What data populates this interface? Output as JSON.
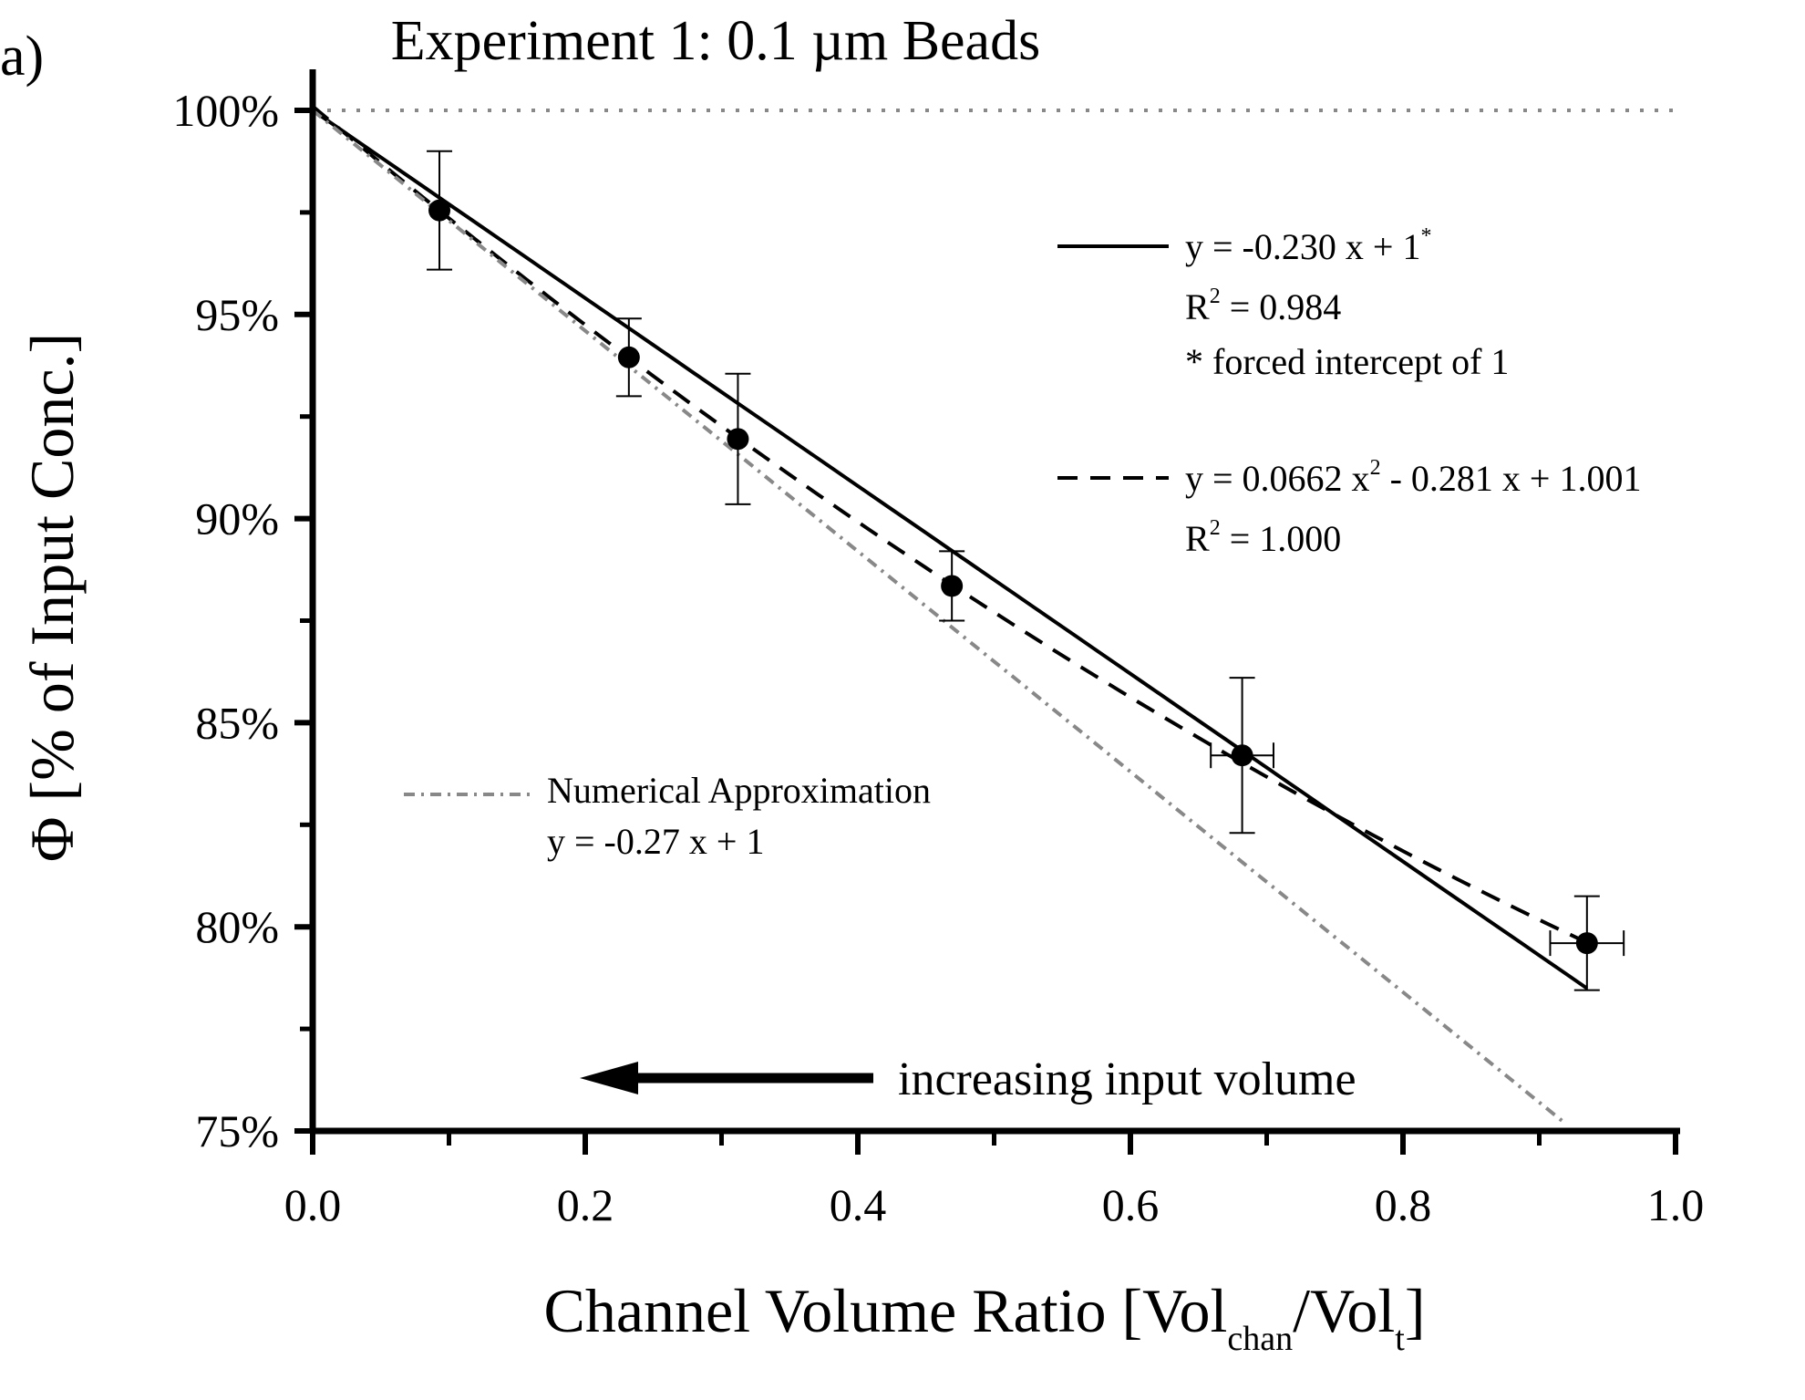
{
  "chart_data": {
    "type": "scatter",
    "panel_label": "a)",
    "title": "Experiment 1: 0.1 µm Beads",
    "xlabel": {
      "main": "Channel Volume Ratio [Vol",
      "sub1": "chan",
      "mid": "/Vol",
      "sub2": "t",
      "end": "]"
    },
    "ylabel": "Φ [% of Input Conc.]",
    "xlim": [
      0,
      1.0
    ],
    "ylim": [
      0.75,
      1.0
    ],
    "x_ticks": [
      0.0,
      0.2,
      0.4,
      0.6,
      0.8,
      1.0
    ],
    "x_tick_labels": [
      "0.0",
      "0.2",
      "0.4",
      "0.6",
      "0.8",
      "1.0"
    ],
    "y_ticks": [
      0.75,
      0.8,
      0.85,
      0.9,
      0.95,
      1.0
    ],
    "y_tick_labels": [
      "75%",
      "80%",
      "85%",
      "90%",
      "95%",
      "100%"
    ],
    "grid": false,
    "reference_line": {
      "y": 1.0,
      "style": "dotted",
      "color": "#888888"
    },
    "points": [
      {
        "x": 0.093,
        "y": 0.9755,
        "y_err": 0.0145,
        "x_err": 0.0
      },
      {
        "x": 0.232,
        "y": 0.9395,
        "y_err": 0.0095,
        "x_err": 0.0
      },
      {
        "x": 0.312,
        "y": 0.9195,
        "y_err": 0.016,
        "x_err": 0.0
      },
      {
        "x": 0.469,
        "y": 0.8835,
        "y_err": 0.0085,
        "x_err": 0.0
      },
      {
        "x": 0.682,
        "y": 0.842,
        "y_err": 0.019,
        "x_err": 0.023
      },
      {
        "x": 0.935,
        "y": 0.796,
        "y_err": 0.0115,
        "x_err": 0.027
      }
    ],
    "series": [
      {
        "kind": "linear fit",
        "style": "solid",
        "color": "#000000",
        "equation": {
          "a": 0,
          "b": -0.23,
          "c": 1
        },
        "x_range": [
          0,
          0.935
        ]
      },
      {
        "kind": "quadratic fit",
        "style": "dashed",
        "color": "#000000",
        "equation": {
          "a": 0.0662,
          "b": -0.281,
          "c": 1.001
        },
        "x_range": [
          0,
          0.935
        ]
      },
      {
        "kind": "numerical approximation",
        "style": "dash-dot",
        "color": "#888888",
        "equation": {
          "a": 0,
          "b": -0.27,
          "c": 1
        },
        "x_range": [
          0,
          0.92
        ]
      }
    ],
    "legend": {
      "placement": "top-right",
      "linear": {
        "eq_pre": "y = -0.230 x + 1",
        "eq_sup": "*",
        "r2_pre": "R",
        "r2_sup": "2",
        "r2_post": " = 0.984",
        "note": "* forced intercept of 1"
      },
      "quadratic": {
        "eq_pre": "y = 0.0662 x",
        "eq_sup": "2",
        "eq_post": " - 0.281 x + 1.001",
        "r2_pre": "R",
        "r2_sup": "2",
        "r2_post": " = 1.000"
      },
      "numerical": {
        "name": "Numerical Approximation",
        "equation": "y = -0.27 x + 1"
      }
    },
    "annotation": {
      "text": "increasing input volume",
      "arrow_direction": "left"
    }
  }
}
